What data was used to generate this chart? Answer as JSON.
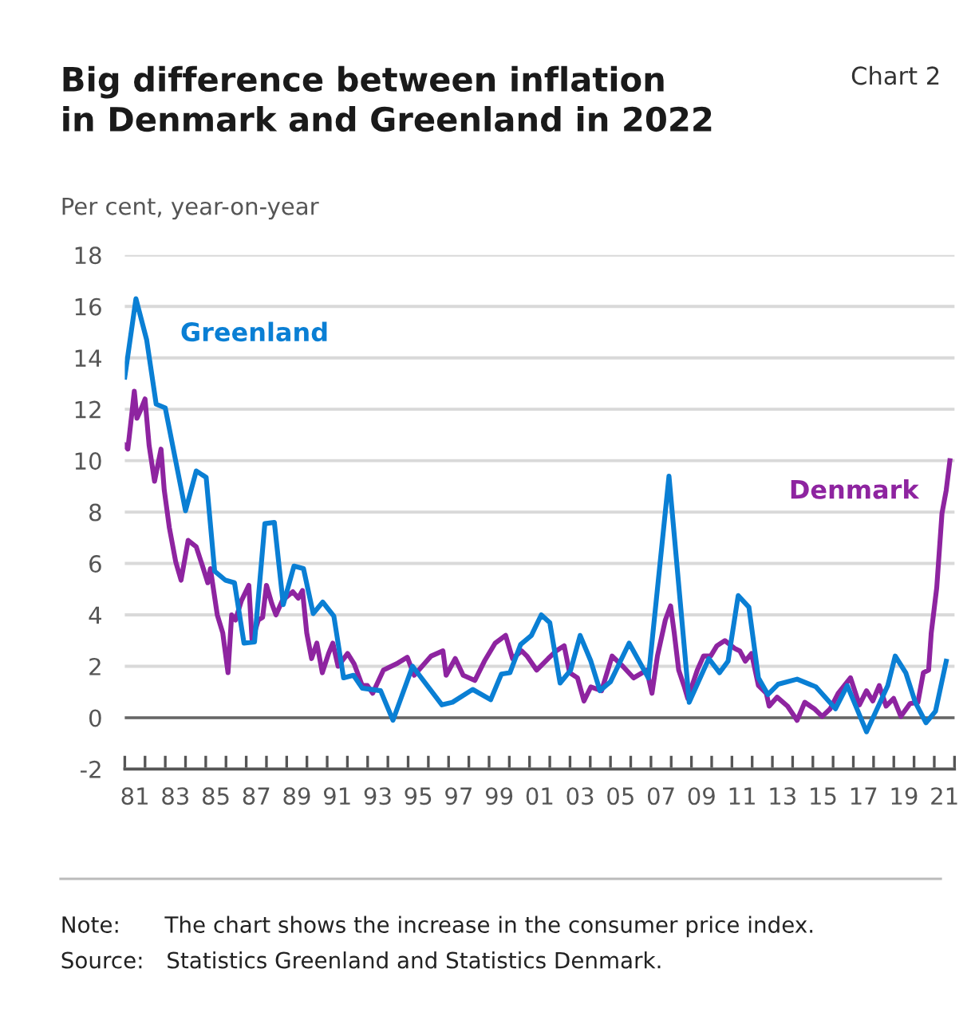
{
  "chart_data": {
    "type": "line",
    "title": "Big difference between inflation\nin Denmark and Greenland in 2022",
    "subtitle": "Chart 2",
    "ylabel": "Per cent, year-on-year",
    "ylim": [
      -2,
      18
    ],
    "yticks": [
      -2,
      0,
      2,
      4,
      6,
      8,
      10,
      12,
      14,
      16,
      18
    ],
    "xlim": [
      1980.5,
      2021.5
    ],
    "xticks": [
      {
        "value": 1980.5,
        "label": null
      },
      {
        "value": 1981.5,
        "label": null
      },
      {
        "value": 1982.5,
        "label": null
      },
      {
        "value": 1983.5,
        "label": null
      },
      {
        "value": 1984.5,
        "label": null
      },
      {
        "value": 1985.5,
        "label": null
      },
      {
        "value": 1986.5,
        "label": null
      },
      {
        "value": 1987.5,
        "label": null
      },
      {
        "value": 1988.5,
        "label": null
      },
      {
        "value": 1989.5,
        "label": null
      },
      {
        "value": 1990.5,
        "label": null
      },
      {
        "value": 1991.5,
        "label": null
      },
      {
        "value": 1992.5,
        "label": null
      },
      {
        "value": 1993.5,
        "label": null
      },
      {
        "value": 1994.5,
        "label": null
      },
      {
        "value": 1995.5,
        "label": null
      },
      {
        "value": 1996.5,
        "label": null
      },
      {
        "value": 1997.5,
        "label": null
      },
      {
        "value": 1998.5,
        "label": null
      },
      {
        "value": 1999.5,
        "label": null
      },
      {
        "value": 2000.5,
        "label": null
      },
      {
        "value": 2001.5,
        "label": null
      },
      {
        "value": 2002.5,
        "label": null
      },
      {
        "value": 2003.5,
        "label": null
      },
      {
        "value": 2004.5,
        "label": null
      },
      {
        "value": 2005.5,
        "label": null
      },
      {
        "value": 2006.5,
        "label": null
      },
      {
        "value": 2007.5,
        "label": null
      },
      {
        "value": 2008.5,
        "label": null
      },
      {
        "value": 2009.5,
        "label": null
      },
      {
        "value": 2010.5,
        "label": null
      },
      {
        "value": 2011.5,
        "label": null
      },
      {
        "value": 2012.5,
        "label": null
      },
      {
        "value": 2013.5,
        "label": null
      },
      {
        "value": 2014.5,
        "label": null
      },
      {
        "value": 2015.5,
        "label": null
      },
      {
        "value": 2016.5,
        "label": null
      },
      {
        "value": 2017.5,
        "label": null
      },
      {
        "value": 2018.5,
        "label": null
      },
      {
        "value": 2019.5,
        "label": null
      },
      {
        "value": 2020.5,
        "label": null
      },
      {
        "value": 2021.5,
        "label": null
      },
      {
        "value": 1981,
        "label": "81"
      },
      {
        "value": 1983,
        "label": "83"
      },
      {
        "value": 1985,
        "label": "85"
      },
      {
        "value": 1987,
        "label": "87"
      },
      {
        "value": 1989,
        "label": "89"
      },
      {
        "value": 1991,
        "label": "91"
      },
      {
        "value": 1993,
        "label": "93"
      },
      {
        "value": 1995,
        "label": "95"
      },
      {
        "value": 1997,
        "label": "97"
      },
      {
        "value": 1999,
        "label": "99"
      },
      {
        "value": 2001,
        "label": "01"
      },
      {
        "value": 2003,
        "label": "03"
      },
      {
        "value": 2005,
        "label": "05"
      },
      {
        "value": 2007,
        "label": "07"
      },
      {
        "value": 2009,
        "label": "09"
      },
      {
        "value": 2011,
        "label": "11"
      },
      {
        "value": 2013,
        "label": "13"
      },
      {
        "value": 2015,
        "label": "15"
      },
      {
        "value": 2017,
        "label": "17"
      },
      {
        "value": 2019,
        "label": "19"
      },
      {
        "value": 2021,
        "label": "21"
      }
    ],
    "grid": "y",
    "legend": false,
    "marker": "none",
    "line_style": "solid",
    "ref_lines": [
      {
        "axis": "y",
        "value": 0,
        "label": null,
        "color": "#666666"
      }
    ],
    "series": [
      {
        "name": "Greenland",
        "color": "#0a7fd4",
        "x": [
          1980.5,
          1981.05,
          1981.58,
          1982.05,
          1982.5,
          1983.5,
          1984.03,
          1984.52,
          1984.94,
          1985.47,
          1985.92,
          1986.39,
          1986.91,
          1987.42,
          1987.89,
          1988.33,
          1988.86,
          1989.33,
          1989.81,
          1990.28,
          1990.83,
          1991.31,
          1991.8,
          1992.23,
          1993.14,
          1993.75,
          1994.72,
          1996.17,
          1996.69,
          1997.69,
          1998.58,
          1999.11,
          1999.53,
          2000.06,
          2000.59,
          2001.08,
          2001.5,
          2002.01,
          2002.53,
          2003.0,
          2003.53,
          2003.98,
          2004.5,
          2005.42,
          2006.37,
          2007.39,
          2008.39,
          2009.36,
          2009.89,
          2010.31,
          2010.81,
          2011.34,
          2011.81,
          2012.28,
          2012.78,
          2013.72,
          2014.65,
          2015.62,
          2016.2,
          2017.15,
          2018.2,
          2018.57,
          2019.09,
          2019.56,
          2020.09,
          2020.56,
          2021.09
        ],
        "values": [
          13.25,
          16.3,
          14.7,
          12.2,
          12.05,
          8.05,
          9.6,
          9.35,
          5.7,
          5.35,
          5.25,
          2.9,
          2.95,
          7.55,
          7.6,
          4.4,
          5.9,
          5.8,
          4.05,
          4.5,
          3.95,
          1.55,
          1.65,
          1.15,
          1.05,
          -0.1,
          2.0,
          0.5,
          0.6,
          1.1,
          0.7,
          1.7,
          1.75,
          2.85,
          3.2,
          4.0,
          3.7,
          1.35,
          1.85,
          3.2,
          2.2,
          1.05,
          1.4,
          2.9,
          1.55,
          9.4,
          0.6,
          2.3,
          1.75,
          2.2,
          4.75,
          4.3,
          1.55,
          0.9,
          1.3,
          1.5,
          1.2,
          0.35,
          1.25,
          -0.55,
          1.25,
          2.4,
          1.75,
          0.6,
          -0.2,
          0.25,
          2.2
        ]
      },
      {
        "name": "Denmark",
        "color": "#8e24a0",
        "x": [
          1980.5,
          1980.65,
          1980.85,
          1980.97,
          1981.1,
          1981.3,
          1981.5,
          1981.7,
          1981.97,
          1982.29,
          1982.45,
          1982.7,
          1983.02,
          1983.28,
          1983.63,
          1984.03,
          1984.34,
          1984.6,
          1984.73,
          1985.07,
          1985.34,
          1985.6,
          1985.78,
          1985.97,
          1986.26,
          1986.63,
          1986.79,
          1987.1,
          1987.31,
          1987.5,
          1987.76,
          1987.97,
          1988.28,
          1988.8,
          1989.07,
          1989.28,
          1989.49,
          1989.73,
          1989.99,
          1990.26,
          1990.57,
          1990.78,
          1991.04,
          1991.51,
          1991.83,
          1992.23,
          1992.49,
          1992.75,
          1993.28,
          1993.93,
          1994.46,
          1994.8,
          1995.64,
          1996.22,
          1996.38,
          1996.83,
          1997.22,
          1997.8,
          1998.27,
          1998.8,
          1999.32,
          1999.66,
          2000.11,
          2000.37,
          2000.85,
          2001.42,
          2001.82,
          2002.21,
          2002.48,
          2002.87,
          2003.19,
          2003.53,
          2004.06,
          2004.58,
          2005.11,
          2005.64,
          2006.29,
          2006.55,
          2006.82,
          2007.21,
          2007.47,
          2007.65,
          2007.87,
          2008.13,
          2008.32,
          2008.79,
          2009.1,
          2009.45,
          2009.76,
          2010.15,
          2010.63,
          2010.89,
          2011.16,
          2011.47,
          2011.81,
          2012.2,
          2012.34,
          2012.73,
          2013.25,
          2013.72,
          2014.1,
          2014.57,
          2014.96,
          2015.36,
          2015.75,
          2016.36,
          2016.8,
          2017.15,
          2017.46,
          2017.78,
          2018.12,
          2018.49,
          2018.85,
          2019.3,
          2019.69,
          2019.96,
          2020.22,
          2020.35,
          2020.62,
          2020.88,
          2021.09,
          2021.27
        ],
        "values": [
          10.6,
          10.45,
          11.85,
          12.7,
          11.65,
          12.0,
          12.4,
          10.6,
          9.2,
          10.45,
          8.85,
          7.4,
          6.05,
          5.35,
          6.9,
          6.65,
          5.9,
          5.25,
          5.8,
          4.0,
          3.3,
          1.75,
          4.0,
          3.8,
          4.55,
          5.15,
          3.0,
          3.8,
          3.9,
          5.15,
          4.45,
          4.0,
          4.55,
          4.9,
          4.65,
          4.95,
          3.3,
          2.3,
          2.9,
          1.75,
          2.5,
          2.9,
          2.0,
          2.5,
          2.1,
          1.25,
          1.25,
          0.95,
          1.85,
          2.1,
          2.35,
          1.65,
          2.4,
          2.6,
          1.65,
          2.3,
          1.65,
          1.45,
          2.2,
          2.9,
          3.2,
          2.3,
          2.6,
          2.4,
          1.85,
          2.3,
          2.6,
          2.8,
          1.75,
          1.55,
          0.65,
          1.2,
          1.05,
          2.4,
          2.0,
          1.55,
          1.85,
          0.95,
          2.4,
          3.8,
          4.35,
          3.3,
          1.85,
          1.25,
          0.75,
          1.85,
          2.4,
          2.4,
          2.8,
          3.0,
          2.7,
          2.6,
          2.2,
          2.5,
          1.25,
          0.95,
          0.45,
          0.8,
          0.45,
          -0.1,
          0.6,
          0.35,
          0.05,
          0.35,
          0.95,
          1.55,
          0.5,
          1.05,
          0.65,
          1.25,
          0.45,
          0.75,
          0.05,
          0.55,
          0.6,
          1.75,
          1.85,
          3.3,
          5.05,
          7.95,
          8.85,
          10.0
        ]
      }
    ],
    "annotations": [
      "Note:  The chart shows the increase in the consumer price index.",
      "Source: Statistics Greenland and Statistics Denmark."
    ]
  }
}
